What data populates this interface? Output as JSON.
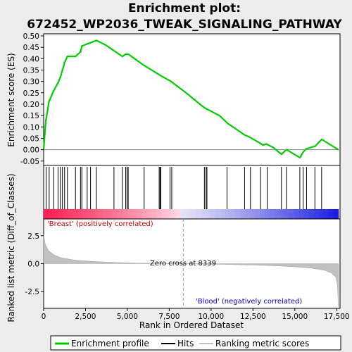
{
  "title_lines": [
    "Enrichment plot:",
    "672452_WP2036_TWEAK_SIGNALING_PATHWAY"
  ],
  "chart_data": {
    "type": "line",
    "x_range": [
      0,
      17700
    ],
    "x_ticks": [
      0,
      2500,
      5000,
      7500,
      10000,
      12500,
      15000,
      17500
    ],
    "x_tick_labels": [
      "0",
      "2,500",
      "5,000",
      "7,500",
      "10,000",
      "12,500",
      "15,000",
      "17,500"
    ],
    "xlabel": "Rank in Ordered Dataset",
    "es_panel": {
      "ylabel": "Enrichment score (ES)",
      "ylim": [
        -0.06,
        0.5
      ],
      "y_ticks": [
        -0.05,
        0.0,
        0.05,
        0.1,
        0.15,
        0.2,
        0.25,
        0.3,
        0.35,
        0.4,
        0.45,
        0.5
      ],
      "y_tick_labels": [
        "-0.05",
        "0.00",
        "0.05",
        "0.10",
        "0.15",
        "0.20",
        "0.25",
        "0.30",
        "0.35",
        "0.40",
        "0.45",
        "0.50"
      ],
      "series_name": "Enrichment profile",
      "color": "#00cc00",
      "x": [
        0,
        130,
        140,
        330,
        340,
        600,
        610,
        860,
        870,
        1000,
        1010,
        1120,
        1130,
        1250,
        1260,
        1420,
        1430,
        1900,
        1910,
        2200,
        2210,
        2280,
        2290,
        2600,
        2610,
        2800,
        2810,
        3150,
        3160,
        3700,
        4200,
        4700,
        4710,
        4900,
        4910,
        5050,
        6000,
        7000,
        7600,
        8500,
        9500,
        9700,
        10500,
        11000,
        11500,
        12000,
        12300,
        12900,
        13100,
        13300,
        13700,
        14200,
        14210,
        14500,
        14510,
        15300,
        15310,
        15500,
        15510,
        15700,
        15710,
        16200,
        16210,
        16600,
        16610,
        17600
      ],
      "y": [
        0.0,
        0.13,
        0.13,
        0.215,
        0.215,
        0.26,
        0.26,
        0.295,
        0.295,
        0.32,
        0.32,
        0.35,
        0.35,
        0.385,
        0.385,
        0.41,
        0.41,
        0.41,
        0.41,
        0.43,
        0.43,
        0.455,
        0.455,
        0.465,
        0.465,
        0.47,
        0.47,
        0.48,
        0.48,
        0.46,
        0.435,
        0.41,
        0.41,
        0.42,
        0.42,
        0.42,
        0.37,
        0.325,
        0.3,
        0.25,
        0.19,
        0.18,
        0.15,
        0.115,
        0.09,
        0.065,
        0.055,
        0.03,
        0.02,
        0.025,
        0.01,
        -0.02,
        -0.02,
        0.0,
        0.0,
        -0.035,
        -0.035,
        -0.01,
        -0.01,
        0.005,
        0.005,
        0.015,
        0.015,
        0.045,
        0.045,
        0.0
      ]
    },
    "hits": [
      150,
      330,
      600,
      860,
      1000,
      1120,
      1250,
      1420,
      1900,
      2200,
      2280,
      2600,
      2800,
      3150,
      4200,
      4700,
      4900,
      4980,
      5050,
      6000,
      6900,
      6950,
      7000,
      7550,
      7650,
      9600,
      9700,
      9750,
      10950,
      12000,
      12350,
      12950,
      13350,
      14200,
      14500,
      15300,
      15500,
      15700,
      16200,
      16600
    ],
    "metric_panel": {
      "ylabel": "Ranked list metric (Diff_of_Classes)",
      "ylim": [
        -4.0,
        4.0
      ],
      "y_ticks": [
        -2.5,
        0.0,
        2.5
      ],
      "y_tick_labels": [
        "-2.5",
        "0.0",
        "2.5"
      ],
      "series_name": "Ranking metric scores",
      "x": [
        0,
        100,
        300,
        600,
        1000,
        1500,
        2000,
        3000,
        4000,
        5000,
        6000,
        7000,
        8339,
        9500,
        11000,
        12500,
        14000,
        15000,
        16000,
        16800,
        17200,
        17450,
        17550,
        17600
      ],
      "y": [
        2.6,
        1.7,
        1.15,
        0.8,
        0.55,
        0.4,
        0.3,
        0.19,
        0.12,
        0.07,
        0.04,
        0.02,
        0.0,
        -0.03,
        -0.07,
        -0.12,
        -0.2,
        -0.28,
        -0.4,
        -0.6,
        -0.85,
        -1.2,
        -2.0,
        -3.9
      ]
    },
    "zero_cross_rank": 8339,
    "annotations": {
      "zero_cross": "Zero cross at 8339",
      "positive": "'Breast' (positively correlated)",
      "negative": "'Blood' (negatively correlated)"
    },
    "legend": [
      {
        "label": "Enrichment profile",
        "color": "#00cc00"
      },
      {
        "label": "Hits",
        "color": "#000000"
      },
      {
        "label": "Ranking metric scores",
        "color": "#c0c0c0"
      }
    ],
    "grid": false,
    "legend_position": "bottom"
  }
}
